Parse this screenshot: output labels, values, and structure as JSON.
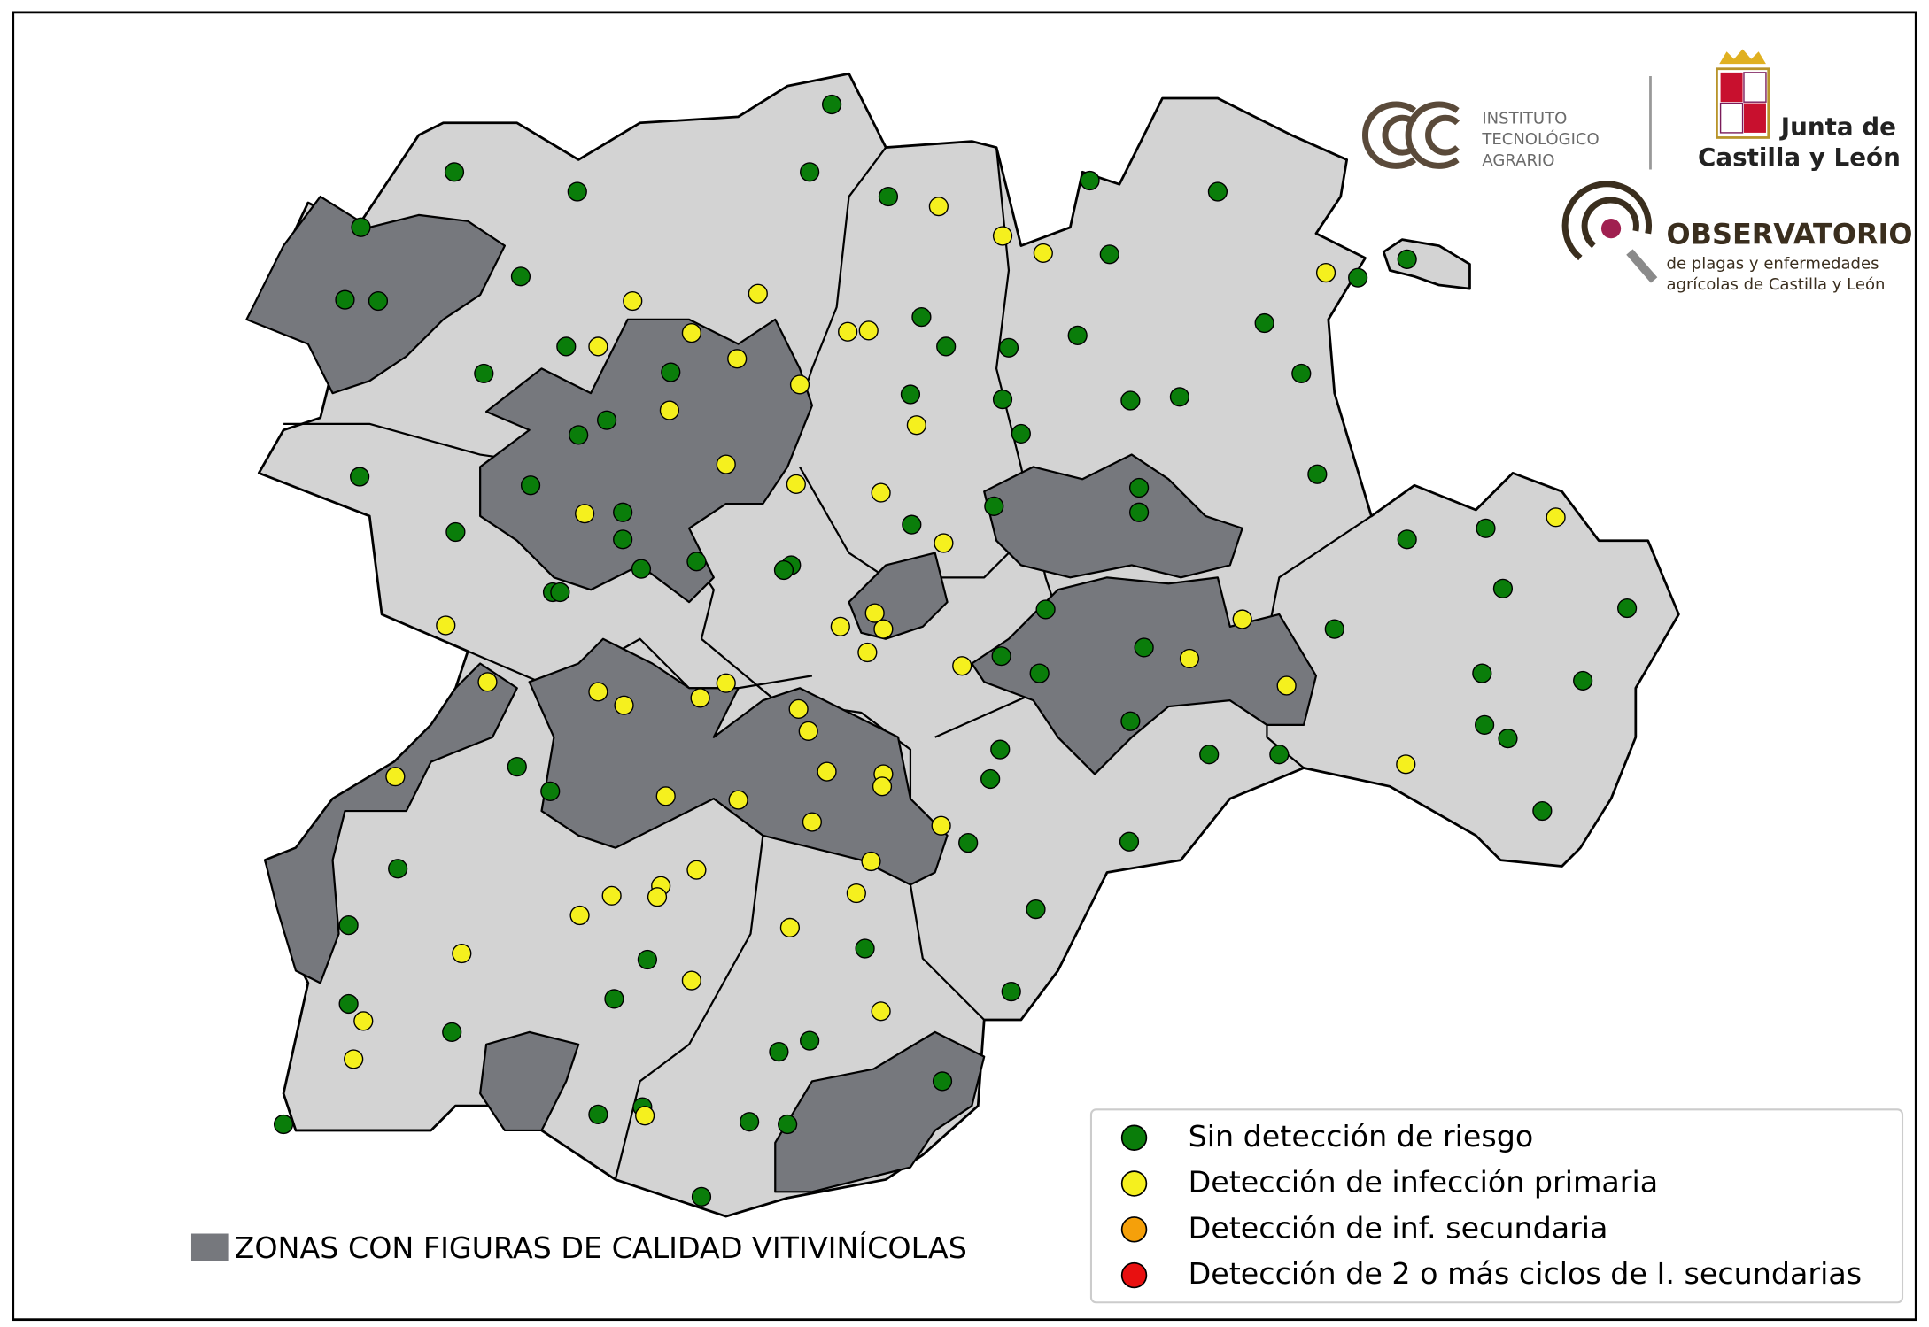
{
  "logos": {
    "itacyl": {
      "lines": [
        "INSTITUTO",
        "TECNOLÓGICO",
        "AGRARIO"
      ]
    },
    "junta": {
      "lines": [
        "Junta de",
        "Castilla y León"
      ]
    },
    "observatorio": {
      "title": "OBSERVATORIO",
      "subtitle": [
        "de plagas y enfermedades",
        "agrícolas de Castilla y León"
      ]
    }
  },
  "legend": {
    "items": [
      {
        "label": "Sin detección de riesgo",
        "color": "#0a7d0a"
      },
      {
        "label": "Detección de infección primaria",
        "color": "#f5f01e"
      },
      {
        "label": "Detección de inf. secundaria",
        "color": "#f5a00a"
      },
      {
        "label": "Detección de 2 o más ciclos de I. secundarias",
        "color": "#e81010"
      }
    ]
  },
  "zone_legend": {
    "label": "ZONAS CON FIGURAS DE CALIDAD VITIVINÍCOLAS",
    "color": "#76787d"
  }
}
